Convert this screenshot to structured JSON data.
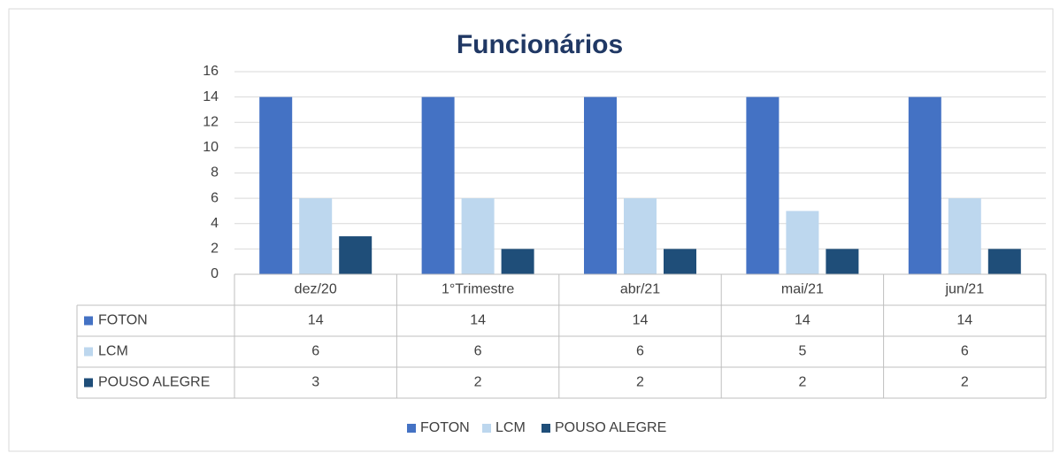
{
  "chart_data": {
    "type": "bar",
    "title": "Funcionários",
    "categories": [
      "dez/20",
      "1°Trimestre",
      "abr/21",
      "mai/21",
      "jun/21"
    ],
    "series": [
      {
        "name": "FOTON",
        "color": "#4472c4",
        "values": [
          14,
          14,
          14,
          14,
          14
        ]
      },
      {
        "name": "LCM",
        "color": "#bdd7ee",
        "values": [
          6,
          6,
          6,
          5,
          6
        ]
      },
      {
        "name": "POUSO ALEGRE",
        "color": "#1f4e79",
        "values": [
          3,
          2,
          2,
          2,
          2
        ]
      }
    ],
    "ylim": [
      0,
      16
    ],
    "yticks": [
      0,
      2,
      4,
      6,
      8,
      10,
      12,
      14,
      16
    ],
    "grid": true,
    "legend": "bottom",
    "data_table": true
  }
}
